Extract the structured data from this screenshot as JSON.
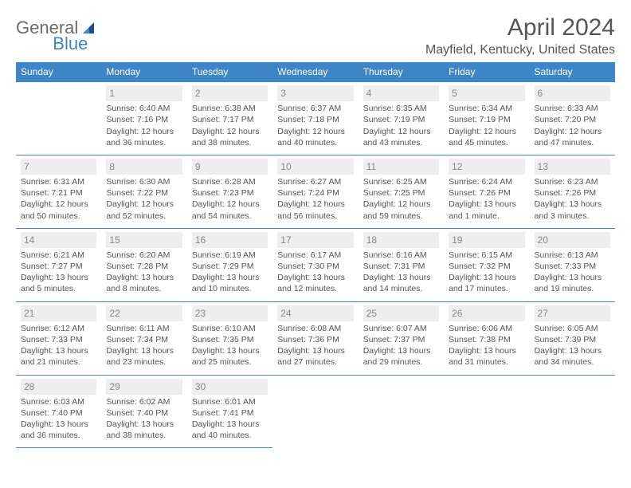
{
  "logo": {
    "word1": "General",
    "word2": "Blue"
  },
  "title": "April 2024",
  "location": "Mayfield, Kentucky, United States",
  "colors": {
    "header_bg": "#3d85c6",
    "header_text": "#ffffff",
    "daynum_bg": "#eeeeee",
    "daynum_text": "#888888",
    "body_text": "#555555",
    "border": "#3d85c6",
    "logo_gray": "#6b6b6b",
    "logo_blue": "#3d85c6"
  },
  "layout": {
    "cell_fontsize": 10.5,
    "header_fontsize": 12,
    "title_fontsize": 30,
    "location_fontsize": 16
  },
  "weekdays": [
    "Sunday",
    "Monday",
    "Tuesday",
    "Wednesday",
    "Thursday",
    "Friday",
    "Saturday"
  ],
  "weeks": [
    [
      null,
      {
        "n": "1",
        "sr": "Sunrise: 6:40 AM",
        "ss": "Sunset: 7:16 PM",
        "d1": "Daylight: 12 hours",
        "d2": "and 36 minutes."
      },
      {
        "n": "2",
        "sr": "Sunrise: 6:38 AM",
        "ss": "Sunset: 7:17 PM",
        "d1": "Daylight: 12 hours",
        "d2": "and 38 minutes."
      },
      {
        "n": "3",
        "sr": "Sunrise: 6:37 AM",
        "ss": "Sunset: 7:18 PM",
        "d1": "Daylight: 12 hours",
        "d2": "and 40 minutes."
      },
      {
        "n": "4",
        "sr": "Sunrise: 6:35 AM",
        "ss": "Sunset: 7:19 PM",
        "d1": "Daylight: 12 hours",
        "d2": "and 43 minutes."
      },
      {
        "n": "5",
        "sr": "Sunrise: 6:34 AM",
        "ss": "Sunset: 7:19 PM",
        "d1": "Daylight: 12 hours",
        "d2": "and 45 minutes."
      },
      {
        "n": "6",
        "sr": "Sunrise: 6:33 AM",
        "ss": "Sunset: 7:20 PM",
        "d1": "Daylight: 12 hours",
        "d2": "and 47 minutes."
      }
    ],
    [
      {
        "n": "7",
        "sr": "Sunrise: 6:31 AM",
        "ss": "Sunset: 7:21 PM",
        "d1": "Daylight: 12 hours",
        "d2": "and 50 minutes."
      },
      {
        "n": "8",
        "sr": "Sunrise: 6:30 AM",
        "ss": "Sunset: 7:22 PM",
        "d1": "Daylight: 12 hours",
        "d2": "and 52 minutes."
      },
      {
        "n": "9",
        "sr": "Sunrise: 6:28 AM",
        "ss": "Sunset: 7:23 PM",
        "d1": "Daylight: 12 hours",
        "d2": "and 54 minutes."
      },
      {
        "n": "10",
        "sr": "Sunrise: 6:27 AM",
        "ss": "Sunset: 7:24 PM",
        "d1": "Daylight: 12 hours",
        "d2": "and 56 minutes."
      },
      {
        "n": "11",
        "sr": "Sunrise: 6:25 AM",
        "ss": "Sunset: 7:25 PM",
        "d1": "Daylight: 12 hours",
        "d2": "and 59 minutes."
      },
      {
        "n": "12",
        "sr": "Sunrise: 6:24 AM",
        "ss": "Sunset: 7:26 PM",
        "d1": "Daylight: 13 hours",
        "d2": "and 1 minute."
      },
      {
        "n": "13",
        "sr": "Sunrise: 6:23 AM",
        "ss": "Sunset: 7:26 PM",
        "d1": "Daylight: 13 hours",
        "d2": "and 3 minutes."
      }
    ],
    [
      {
        "n": "14",
        "sr": "Sunrise: 6:21 AM",
        "ss": "Sunset: 7:27 PM",
        "d1": "Daylight: 13 hours",
        "d2": "and 5 minutes."
      },
      {
        "n": "15",
        "sr": "Sunrise: 6:20 AM",
        "ss": "Sunset: 7:28 PM",
        "d1": "Daylight: 13 hours",
        "d2": "and 8 minutes."
      },
      {
        "n": "16",
        "sr": "Sunrise: 6:19 AM",
        "ss": "Sunset: 7:29 PM",
        "d1": "Daylight: 13 hours",
        "d2": "and 10 minutes."
      },
      {
        "n": "17",
        "sr": "Sunrise: 6:17 AM",
        "ss": "Sunset: 7:30 PM",
        "d1": "Daylight: 13 hours",
        "d2": "and 12 minutes."
      },
      {
        "n": "18",
        "sr": "Sunrise: 6:16 AM",
        "ss": "Sunset: 7:31 PM",
        "d1": "Daylight: 13 hours",
        "d2": "and 14 minutes."
      },
      {
        "n": "19",
        "sr": "Sunrise: 6:15 AM",
        "ss": "Sunset: 7:32 PM",
        "d1": "Daylight: 13 hours",
        "d2": "and 17 minutes."
      },
      {
        "n": "20",
        "sr": "Sunrise: 6:13 AM",
        "ss": "Sunset: 7:33 PM",
        "d1": "Daylight: 13 hours",
        "d2": "and 19 minutes."
      }
    ],
    [
      {
        "n": "21",
        "sr": "Sunrise: 6:12 AM",
        "ss": "Sunset: 7:33 PM",
        "d1": "Daylight: 13 hours",
        "d2": "and 21 minutes."
      },
      {
        "n": "22",
        "sr": "Sunrise: 6:11 AM",
        "ss": "Sunset: 7:34 PM",
        "d1": "Daylight: 13 hours",
        "d2": "and 23 minutes."
      },
      {
        "n": "23",
        "sr": "Sunrise: 6:10 AM",
        "ss": "Sunset: 7:35 PM",
        "d1": "Daylight: 13 hours",
        "d2": "and 25 minutes."
      },
      {
        "n": "24",
        "sr": "Sunrise: 6:08 AM",
        "ss": "Sunset: 7:36 PM",
        "d1": "Daylight: 13 hours",
        "d2": "and 27 minutes."
      },
      {
        "n": "25",
        "sr": "Sunrise: 6:07 AM",
        "ss": "Sunset: 7:37 PM",
        "d1": "Daylight: 13 hours",
        "d2": "and 29 minutes."
      },
      {
        "n": "26",
        "sr": "Sunrise: 6:06 AM",
        "ss": "Sunset: 7:38 PM",
        "d1": "Daylight: 13 hours",
        "d2": "and 31 minutes."
      },
      {
        "n": "27",
        "sr": "Sunrise: 6:05 AM",
        "ss": "Sunset: 7:39 PM",
        "d1": "Daylight: 13 hours",
        "d2": "and 34 minutes."
      }
    ],
    [
      {
        "n": "28",
        "sr": "Sunrise: 6:03 AM",
        "ss": "Sunset: 7:40 PM",
        "d1": "Daylight: 13 hours",
        "d2": "and 36 minutes."
      },
      {
        "n": "29",
        "sr": "Sunrise: 6:02 AM",
        "ss": "Sunset: 7:40 PM",
        "d1": "Daylight: 13 hours",
        "d2": "and 38 minutes."
      },
      {
        "n": "30",
        "sr": "Sunrise: 6:01 AM",
        "ss": "Sunset: 7:41 PM",
        "d1": "Daylight: 13 hours",
        "d2": "and 40 minutes."
      },
      null,
      null,
      null,
      null
    ]
  ]
}
